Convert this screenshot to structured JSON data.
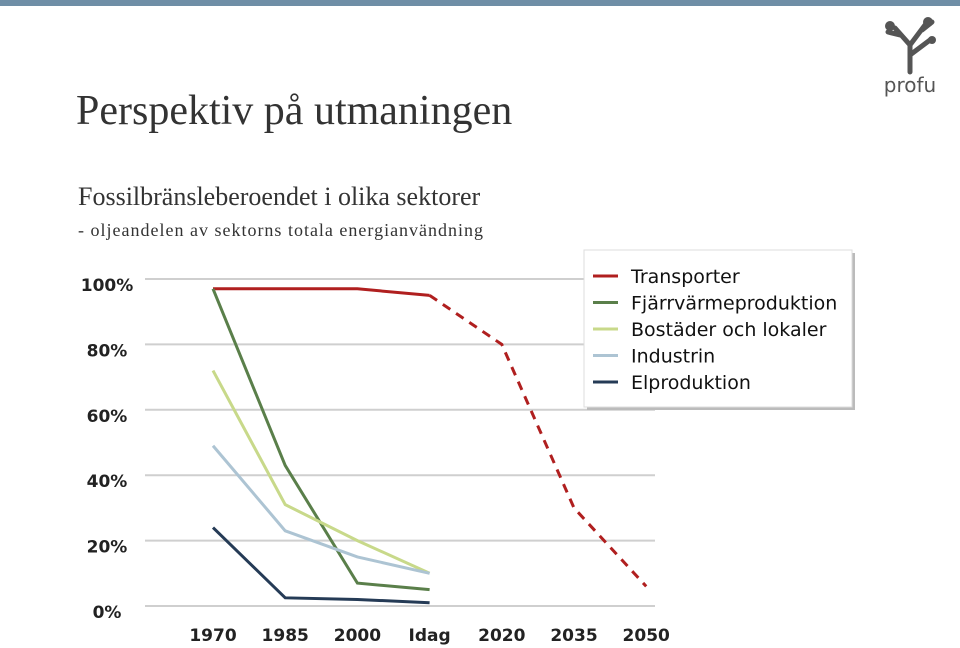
{
  "header": {
    "title": "Perspektiv på utmaningen",
    "logo": "profu"
  },
  "chart_data": {
    "type": "line",
    "title": "Fossilbränsleberoendet i olika sektorer",
    "subtitle": "- oljeandelen av sektorns totala energianvändning",
    "categories": [
      "1970",
      "1985",
      "2000",
      "Idag",
      "2020",
      "2035",
      "2050"
    ],
    "projection_start": 3,
    "series": [
      {
        "name": "Transporter",
        "color": "#b01f1f",
        "values": [
          97,
          97,
          97,
          95,
          80,
          30,
          6
        ]
      },
      {
        "name": "Fjärrvärmeproduktion",
        "color": "#5a7f4a",
        "values": [
          97,
          43,
          7,
          5,
          null,
          null,
          null
        ]
      },
      {
        "name": "Bostäder och lokaler",
        "color": "#c8d98a",
        "values": [
          72,
          31,
          20,
          10,
          null,
          null,
          null
        ]
      },
      {
        "name": "Industrin",
        "color": "#adc4d3",
        "values": [
          49,
          23,
          15,
          10,
          null,
          null,
          null
        ]
      },
      {
        "name": "Elproduktion",
        "color": "#253b56",
        "values": [
          24,
          2.5,
          2,
          1,
          null,
          null,
          null
        ]
      }
    ],
    "ylim": [
      0,
      100
    ],
    "yticks": [
      {
        "value": 0,
        "label": "0%"
      },
      {
        "value": 20,
        "label": "20%"
      },
      {
        "value": 40,
        "label": "40%"
      },
      {
        "value": 60,
        "label": "60%"
      },
      {
        "value": 80,
        "label": "80%"
      },
      {
        "value": 100,
        "label": "100%"
      }
    ],
    "grid": true,
    "legend": "top-right"
  }
}
